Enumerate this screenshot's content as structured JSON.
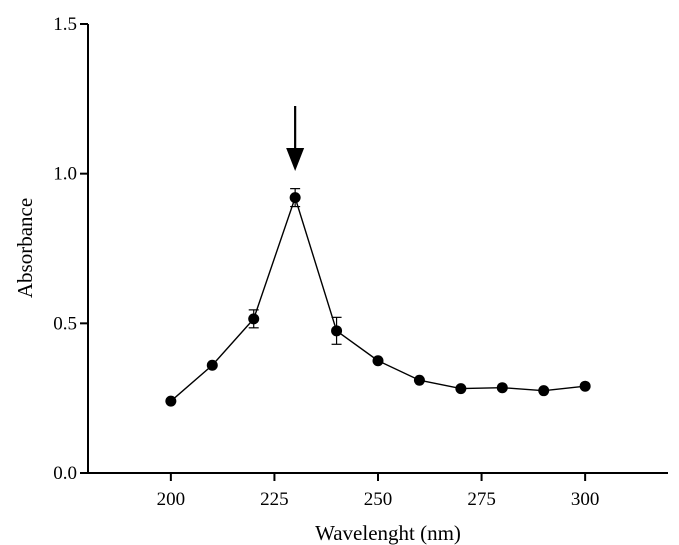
{
  "chart_data": {
    "type": "line",
    "title": "",
    "xlabel": "Wavelenght (nm)",
    "ylabel": "Absorbance",
    "xlim": [
      180,
      320
    ],
    "ylim": [
      0.0,
      1.5
    ],
    "x_ticks": [
      200,
      225,
      250,
      275,
      300
    ],
    "x_tick_labels": [
      "200",
      "225",
      "250",
      "275",
      "300"
    ],
    "y_ticks": [
      0.0,
      0.5,
      1.0,
      1.5
    ],
    "y_tick_labels": [
      "0.0",
      "0.5",
      "1.0",
      "1.5"
    ],
    "grid": false,
    "series": [
      {
        "x": [
          200,
          210,
          220,
          230,
          240,
          250,
          260,
          270,
          280,
          290,
          300
        ],
        "y": [
          0.24,
          0.36,
          0.515,
          0.92,
          0.475,
          0.375,
          0.31,
          0.282,
          0.285,
          0.275,
          0.29
        ],
        "error": [
          0,
          0,
          0.03,
          0.03,
          0.045,
          0,
          0,
          0,
          0,
          0,
          0
        ]
      }
    ],
    "annotation": {
      "type": "arrow-down",
      "x": 230
    }
  },
  "colors": {
    "line": "#000000",
    "marker": "#000000",
    "background": "#ffffff"
  }
}
